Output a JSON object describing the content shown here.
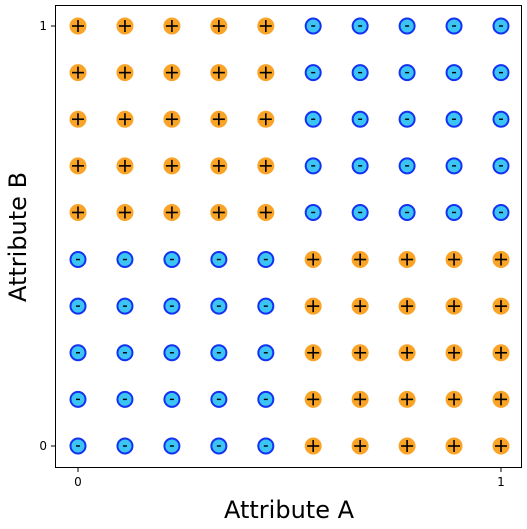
{
  "chart_data": {
    "type": "scatter",
    "xlabel": "Attribute A",
    "ylabel": "Attribute B",
    "xlim": [
      -0.05,
      1.05
    ],
    "ylim": [
      -0.05,
      1.05
    ],
    "x_ticks": [
      "0",
      "1"
    ],
    "y_ticks": [
      "0",
      "1"
    ],
    "grid": false,
    "legend": "none",
    "colors": {
      "plus_fill": "#f9a427",
      "plus_edge": "#f9a427",
      "minus_fill": "#3cc4f5",
      "minus_edge": "#1431f0",
      "marker_symbol": "#000000"
    },
    "labels": {
      "plus": "+",
      "minus": "-"
    },
    "grid_values": [
      0,
      0.111,
      0.222,
      0.333,
      0.444,
      0.556,
      0.667,
      0.778,
      0.889,
      1
    ],
    "rule": "class is '-' when (A < 0.5 and B < 0.5) or (A > 0.5 and B > 0.5); otherwise '+'",
    "series": [
      {
        "class": "+",
        "points": [
          [
            0,
            0.556
          ],
          [
            0.111,
            0.556
          ],
          [
            0.222,
            0.556
          ],
          [
            0.333,
            0.556
          ],
          [
            0.444,
            0.556
          ],
          [
            0,
            0.667
          ],
          [
            0.111,
            0.667
          ],
          [
            0.222,
            0.667
          ],
          [
            0.333,
            0.667
          ],
          [
            0.444,
            0.667
          ],
          [
            0,
            0.778
          ],
          [
            0.111,
            0.778
          ],
          [
            0.222,
            0.778
          ],
          [
            0.333,
            0.778
          ],
          [
            0.444,
            0.778
          ],
          [
            0,
            0.889
          ],
          [
            0.111,
            0.889
          ],
          [
            0.222,
            0.889
          ],
          [
            0.333,
            0.889
          ],
          [
            0.444,
            0.889
          ],
          [
            0,
            1
          ],
          [
            0.111,
            1
          ],
          [
            0.222,
            1
          ],
          [
            0.333,
            1
          ],
          [
            0.444,
            1
          ],
          [
            0.556,
            0
          ],
          [
            0.667,
            0
          ],
          [
            0.778,
            0
          ],
          [
            0.889,
            0
          ],
          [
            1,
            0
          ],
          [
            0.556,
            0.111
          ],
          [
            0.667,
            0.111
          ],
          [
            0.778,
            0.111
          ],
          [
            0.889,
            0.111
          ],
          [
            1,
            0.111
          ],
          [
            0.556,
            0.222
          ],
          [
            0.667,
            0.222
          ],
          [
            0.778,
            0.222
          ],
          [
            0.889,
            0.222
          ],
          [
            1,
            0.222
          ],
          [
            0.556,
            0.333
          ],
          [
            0.667,
            0.333
          ],
          [
            0.778,
            0.333
          ],
          [
            0.889,
            0.333
          ],
          [
            1,
            0.333
          ],
          [
            0.556,
            0.444
          ],
          [
            0.667,
            0.444
          ],
          [
            0.778,
            0.444
          ],
          [
            0.889,
            0.444
          ],
          [
            1,
            0.444
          ]
        ]
      },
      {
        "class": "-",
        "points": [
          [
            0,
            0
          ],
          [
            0.111,
            0
          ],
          [
            0.222,
            0
          ],
          [
            0.333,
            0
          ],
          [
            0.444,
            0
          ],
          [
            0,
            0.111
          ],
          [
            0.111,
            0.111
          ],
          [
            0.222,
            0.111
          ],
          [
            0.333,
            0.111
          ],
          [
            0.444,
            0.111
          ],
          [
            0,
            0.222
          ],
          [
            0.111,
            0.222
          ],
          [
            0.222,
            0.222
          ],
          [
            0.333,
            0.222
          ],
          [
            0.444,
            0.222
          ],
          [
            0,
            0.333
          ],
          [
            0.111,
            0.333
          ],
          [
            0.222,
            0.333
          ],
          [
            0.333,
            0.333
          ],
          [
            0.444,
            0.333
          ],
          [
            0,
            0.444
          ],
          [
            0.111,
            0.444
          ],
          [
            0.222,
            0.444
          ],
          [
            0.333,
            0.444
          ],
          [
            0.444,
            0.444
          ],
          [
            0.556,
            0.556
          ],
          [
            0.667,
            0.556
          ],
          [
            0.778,
            0.556
          ],
          [
            0.889,
            0.556
          ],
          [
            1,
            0.556
          ],
          [
            0.556,
            0.667
          ],
          [
            0.667,
            0.667
          ],
          [
            0.778,
            0.667
          ],
          [
            0.889,
            0.667
          ],
          [
            1,
            0.667
          ],
          [
            0.556,
            0.778
          ],
          [
            0.667,
            0.778
          ],
          [
            0.778,
            0.778
          ],
          [
            0.889,
            0.778
          ],
          [
            1,
            0.778
          ],
          [
            0.556,
            0.889
          ],
          [
            0.667,
            0.889
          ],
          [
            0.778,
            0.889
          ],
          [
            0.889,
            0.889
          ],
          [
            1,
            0.889
          ],
          [
            0.556,
            1
          ],
          [
            0.667,
            1
          ],
          [
            0.778,
            1
          ],
          [
            0.889,
            1
          ],
          [
            1,
            1
          ]
        ]
      }
    ]
  }
}
